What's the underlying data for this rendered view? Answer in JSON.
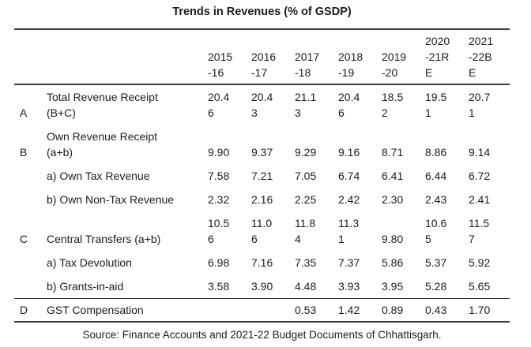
{
  "title": "Trends in Revenues (% of GSDP)",
  "source": "Source: Finance Accounts and 2021-22 Budget Documents of Chhattisgarh.",
  "table": {
    "year_headers": [
      "2015\n-16",
      "2016\n-17",
      "2017\n-18",
      "2018\n-19",
      "2019\n-20",
      "2020\n-21R\nE",
      "2021\n-22B\nE"
    ],
    "rows": [
      {
        "key": "A",
        "label": "Total Revenue Receipt\n(B+C)",
        "values": [
          "20.4\n6",
          "20.4\n3",
          "21.1\n3",
          "20.4\n6",
          "18.5\n2",
          "19.5\n1",
          "20.7\n1"
        ]
      },
      {
        "key": "B",
        "label": "Own Revenue Receipt\n(a+b)",
        "values": [
          "9.90",
          "9.37",
          "9.29",
          "9.16",
          "8.71",
          "8.86",
          "9.14"
        ]
      },
      {
        "key": "",
        "label": "a) Own Tax Revenue",
        "values": [
          "7.58",
          "7.21",
          "7.05",
          "6.74",
          "6.41",
          "6.44",
          "6.72"
        ]
      },
      {
        "key": "",
        "label": "b) Own Non-Tax Revenue",
        "values": [
          "2.32",
          "2.16",
          "2.25",
          "2.42",
          "2.30",
          "2.43",
          "2.41"
        ]
      },
      {
        "key": "C",
        "label": "Central Transfers (a+b)",
        "values": [
          "10.5\n6",
          "11.0\n6",
          "11.8\n4",
          "11.3\n1",
          "9.80",
          "10.6\n5",
          "11.5\n7"
        ]
      },
      {
        "key": "",
        "label": "a) Tax Devolution",
        "values": [
          "6.98",
          "7.16",
          "7.35",
          "7.37",
          "5.86",
          "5.37",
          "5.92"
        ]
      },
      {
        "key": "",
        "label": "b) Grants-in-aid",
        "values": [
          "3.58",
          "3.90",
          "4.48",
          "3.93",
          "3.95",
          "5.28",
          "5.65"
        ]
      },
      {
        "key": "D",
        "label": "GST Compensation",
        "values": [
          "",
          "",
          "0.53",
          "1.42",
          "0.89",
          "0.43",
          "1.70"
        ]
      }
    ]
  }
}
